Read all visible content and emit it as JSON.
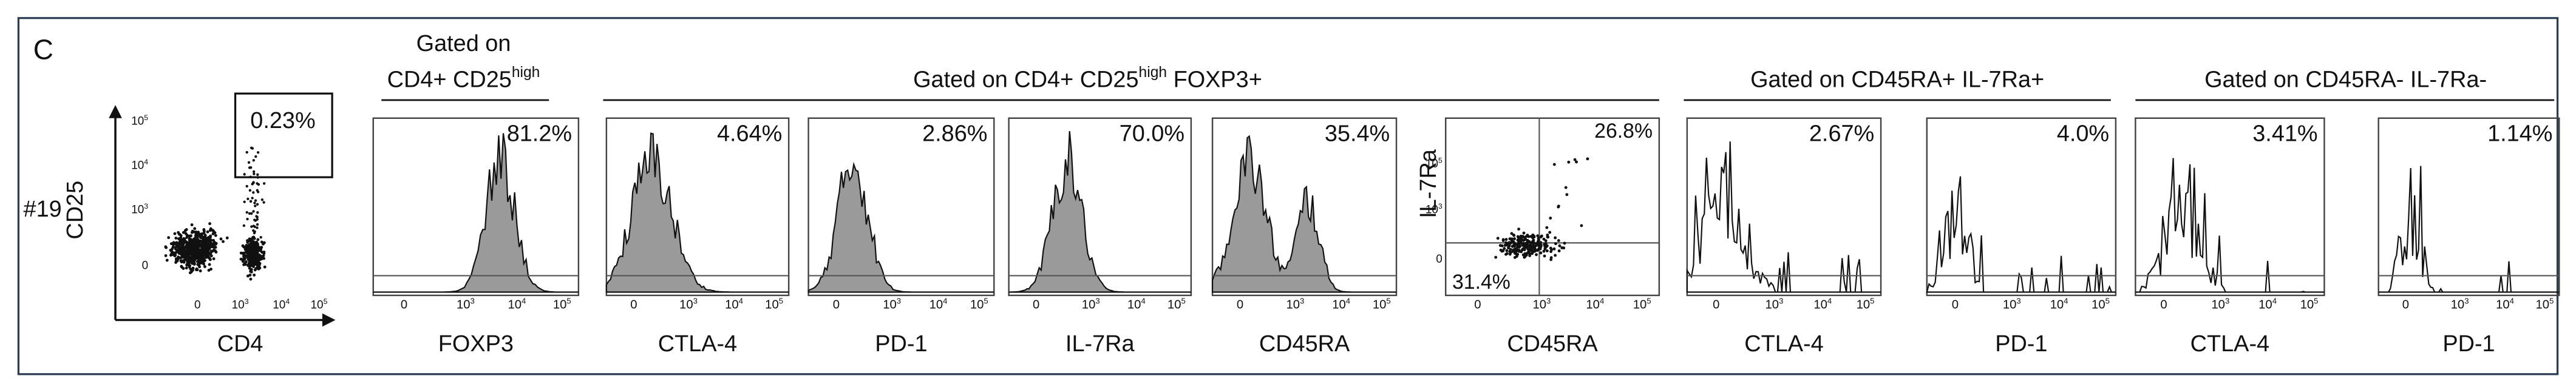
{
  "panel_label": "C",
  "sample": "#19",
  "axis_ticks": {
    "zero": "0",
    "base": "10",
    "exponents": [
      "3",
      "4",
      "5"
    ]
  },
  "dot_plot": {
    "y_label": "CD25",
    "x_label": "CD4",
    "gate": "0.23%"
  },
  "groups": [
    {
      "title_line1": "Gated on",
      "title_main": "CD4+ CD25",
      "title_sup": "high",
      "panels": [
        {
          "marker": "FOXP3",
          "percent": "81.2%"
        }
      ]
    },
    {
      "title_main": "Gated on CD4+ CD25",
      "title_sup": "high",
      "title_after": " FOXP3+",
      "panels": [
        {
          "marker": "CTLA-4",
          "percent": "4.64%"
        },
        {
          "marker": "PD-1",
          "percent": "2.86%"
        },
        {
          "marker": "IL-7Ra",
          "percent": "70.0%"
        },
        {
          "marker": "CD45RA",
          "percent": "35.4%"
        }
      ],
      "scatter": {
        "x_label": "CD45RA",
        "y_label": "IL-7Ra",
        "upper_right": "26.8%",
        "lower_left": "31.4%"
      }
    },
    {
      "title_main": "Gated on CD45RA+ IL-7Ra+",
      "panels": [
        {
          "marker": "CTLA-4",
          "percent": "2.67%"
        },
        {
          "marker": "PD-1",
          "percent": "4.0%"
        }
      ]
    },
    {
      "title_main": "Gated on CD45RA- IL-7Ra-",
      "panels": [
        {
          "marker": "CTLA-4",
          "percent": "3.41%"
        },
        {
          "marker": "PD-1",
          "percent": "1.14%"
        }
      ]
    }
  ]
}
